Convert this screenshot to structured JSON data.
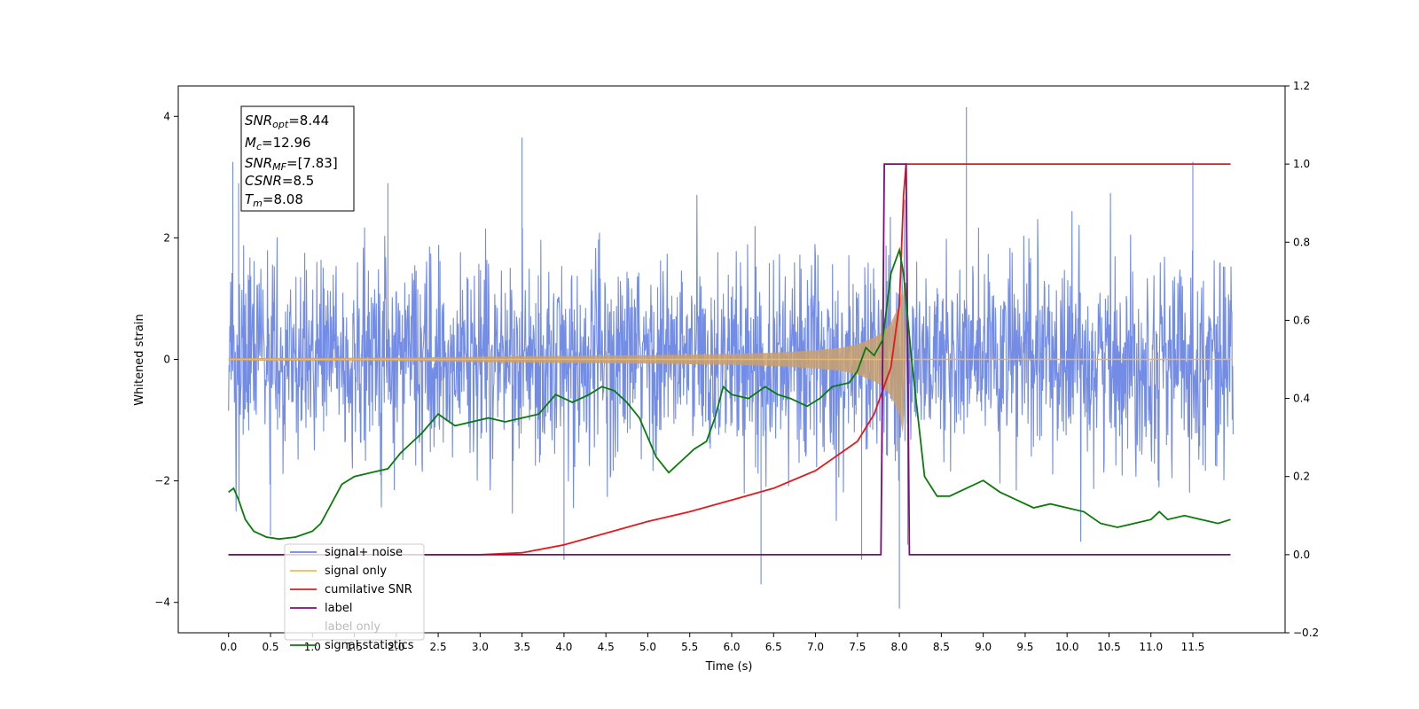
{
  "chart_data": {
    "type": "line",
    "xlabel": "Time (s)",
    "ylabel": "Whitened strain",
    "xlim": [
      -0.6,
      12.6
    ],
    "ylim": [
      -4.5,
      4.5
    ],
    "y2lim": [
      -0.2,
      1.2
    ],
    "x_ticks": [
      "0.0",
      "0.5",
      "1.0",
      "1.5",
      "2.0",
      "2.5",
      "3.0",
      "3.5",
      "4.0",
      "4.5",
      "5.0",
      "5.5",
      "6.0",
      "6.5",
      "7.0",
      "7.5",
      "8.0",
      "8.5",
      "9.0",
      "9.5",
      "10.0",
      "10.5",
      "11.0",
      "11.5"
    ],
    "y_ticks": [
      "−4",
      "−2",
      "0",
      "2",
      "4"
    ],
    "y2_ticks": [
      "−0.2",
      "0.0",
      "0.2",
      "0.4",
      "0.6",
      "0.8",
      "1.0",
      "1.2"
    ],
    "info_box": {
      "snr_opt": "=8.44",
      "mc": "=12.96",
      "snr_mf": "=[7.83]",
      "csnr": "=8.5",
      "tm": "=8.08"
    },
    "legend": [
      {
        "label": "signal+ noise",
        "color": "#6b86e4"
      },
      {
        "label": "signal only",
        "color": "#f5b74e"
      },
      {
        "label": "cumilative SNR",
        "color": "#e31a1c"
      },
      {
        "label": "label",
        "color": "#7b0d7b"
      },
      {
        "label": "label only",
        "color": "#bbbbbb"
      },
      {
        "label": "signal statistics",
        "color": "#0a7a0a"
      }
    ],
    "series": [
      {
        "name": "signal+ noise",
        "axis": "left",
        "color": "#6b86e4",
        "envelope_note": "noise envelope approx ±1.5 with spikes to ±3.5",
        "spikes": [
          {
            "x": 0.05,
            "y": 3.25
          },
          {
            "x": 0.12,
            "y": 2.9
          },
          {
            "x": 0.5,
            "y": -2.9
          },
          {
            "x": 1.9,
            "y": 2.9
          },
          {
            "x": 3.5,
            "y": 3.65
          },
          {
            "x": 4.0,
            "y": -3.3
          },
          {
            "x": 6.35,
            "y": -3.7
          },
          {
            "x": 7.55,
            "y": -3.3
          },
          {
            "x": 8.0,
            "y": -4.1
          },
          {
            "x": 8.1,
            "y": -3.05
          },
          {
            "x": 8.8,
            "y": 4.15
          },
          {
            "x": 11.5,
            "y": 3.25
          }
        ]
      },
      {
        "name": "signal only",
        "axis": "left",
        "color": "#c8a06e",
        "envelope": [
          [
            0.0,
            0.02
          ],
          [
            2.0,
            0.03
          ],
          [
            4.0,
            0.06
          ],
          [
            5.0,
            0.07
          ],
          [
            6.0,
            0.09
          ],
          [
            6.5,
            0.11
          ],
          [
            7.0,
            0.15
          ],
          [
            7.3,
            0.19
          ],
          [
            7.5,
            0.25
          ],
          [
            7.7,
            0.36
          ],
          [
            7.8,
            0.45
          ],
          [
            7.9,
            0.6
          ],
          [
            8.0,
            0.9
          ],
          [
            8.05,
            1.3
          ],
          [
            8.08,
            0.0
          ],
          [
            12.0,
            0.0
          ]
        ]
      },
      {
        "name": "cumilative SNR",
        "axis": "right",
        "color": "#e31a1c",
        "points": [
          [
            0.0,
            0.0
          ],
          [
            3.0,
            0.0
          ],
          [
            3.5,
            0.005
          ],
          [
            4.0,
            0.025
          ],
          [
            4.5,
            0.055
          ],
          [
            5.0,
            0.085
          ],
          [
            5.5,
            0.11
          ],
          [
            6.0,
            0.14
          ],
          [
            6.5,
            0.17
          ],
          [
            7.0,
            0.215
          ],
          [
            7.5,
            0.29
          ],
          [
            7.7,
            0.36
          ],
          [
            7.9,
            0.48
          ],
          [
            8.0,
            0.64
          ],
          [
            8.05,
            0.92
          ],
          [
            8.08,
            1.0
          ],
          [
            11.95,
            1.0
          ]
        ]
      },
      {
        "name": "label",
        "axis": "right",
        "color": "#7b0d7b",
        "points": [
          [
            0.0,
            0.0
          ],
          [
            7.78,
            0.0
          ],
          [
            7.82,
            1.0
          ],
          [
            8.08,
            1.0
          ],
          [
            8.12,
            0.0
          ],
          [
            11.95,
            0.0
          ]
        ]
      },
      {
        "name": "signal statistics",
        "axis": "right",
        "color": "#0a7a0a",
        "points": [
          [
            0.0,
            0.16
          ],
          [
            0.06,
            0.17
          ],
          [
            0.12,
            0.14
          ],
          [
            0.2,
            0.09
          ],
          [
            0.3,
            0.06
          ],
          [
            0.45,
            0.045
          ],
          [
            0.6,
            0.04
          ],
          [
            0.8,
            0.045
          ],
          [
            1.0,
            0.06
          ],
          [
            1.1,
            0.08
          ],
          [
            1.2,
            0.12
          ],
          [
            1.35,
            0.18
          ],
          [
            1.5,
            0.2
          ],
          [
            1.7,
            0.21
          ],
          [
            1.9,
            0.22
          ],
          [
            2.05,
            0.26
          ],
          [
            2.2,
            0.29
          ],
          [
            2.3,
            0.31
          ],
          [
            2.5,
            0.36
          ],
          [
            2.7,
            0.33
          ],
          [
            2.9,
            0.34
          ],
          [
            3.1,
            0.35
          ],
          [
            3.3,
            0.34
          ],
          [
            3.5,
            0.35
          ],
          [
            3.7,
            0.36
          ],
          [
            3.9,
            0.41
          ],
          [
            4.1,
            0.39
          ],
          [
            4.3,
            0.41
          ],
          [
            4.45,
            0.43
          ],
          [
            4.6,
            0.42
          ],
          [
            4.75,
            0.39
          ],
          [
            4.9,
            0.35
          ],
          [
            5.1,
            0.25
          ],
          [
            5.25,
            0.21
          ],
          [
            5.4,
            0.24
          ],
          [
            5.55,
            0.27
          ],
          [
            5.7,
            0.29
          ],
          [
            5.8,
            0.35
          ],
          [
            5.9,
            0.43
          ],
          [
            6.0,
            0.41
          ],
          [
            6.2,
            0.4
          ],
          [
            6.4,
            0.43
          ],
          [
            6.55,
            0.41
          ],
          [
            6.7,
            0.4
          ],
          [
            6.9,
            0.38
          ],
          [
            7.05,
            0.4
          ],
          [
            7.2,
            0.43
          ],
          [
            7.4,
            0.44
          ],
          [
            7.5,
            0.47
          ],
          [
            7.6,
            0.53
          ],
          [
            7.7,
            0.51
          ],
          [
            7.8,
            0.55
          ],
          [
            7.9,
            0.72
          ],
          [
            8.0,
            0.78
          ],
          [
            8.05,
            0.72
          ],
          [
            8.15,
            0.49
          ],
          [
            8.3,
            0.2
          ],
          [
            8.45,
            0.15
          ],
          [
            8.6,
            0.15
          ],
          [
            8.8,
            0.17
          ],
          [
            9.0,
            0.19
          ],
          [
            9.2,
            0.16
          ],
          [
            9.4,
            0.14
          ],
          [
            9.6,
            0.12
          ],
          [
            9.8,
            0.13
          ],
          [
            10.0,
            0.12
          ],
          [
            10.2,
            0.11
          ],
          [
            10.4,
            0.08
          ],
          [
            10.6,
            0.07
          ],
          [
            10.8,
            0.08
          ],
          [
            11.0,
            0.09
          ],
          [
            11.1,
            0.11
          ],
          [
            11.2,
            0.09
          ],
          [
            11.4,
            0.1
          ],
          [
            11.6,
            0.09
          ],
          [
            11.8,
            0.08
          ],
          [
            11.95,
            0.09
          ]
        ]
      }
    ]
  }
}
